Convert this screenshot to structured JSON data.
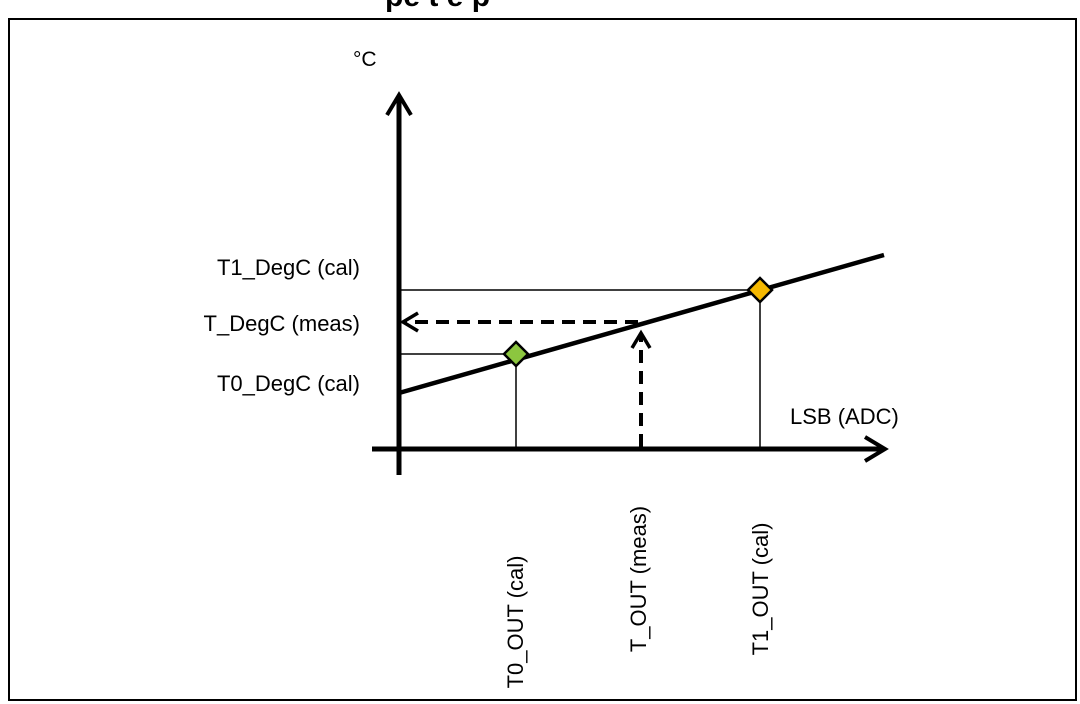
{
  "header": {
    "partial_title": "pe  t   e  p"
  },
  "axes": {
    "y_unit": "°C",
    "x_label": "LSB (ADC)"
  },
  "y_labels": {
    "t1": "T1_DegC (cal)",
    "t_meas": "T_DegC (meas)",
    "t0": "T0_DegC (cal)"
  },
  "x_labels": {
    "t0": "T0_OUT (cal)",
    "t_meas": "T_OUT (meas)",
    "t1": "T1_OUT (cal)"
  },
  "colors": {
    "calibration_point_0": "#8cc63f",
    "calibration_point_1": "#f5b800",
    "line": "#000000"
  }
}
